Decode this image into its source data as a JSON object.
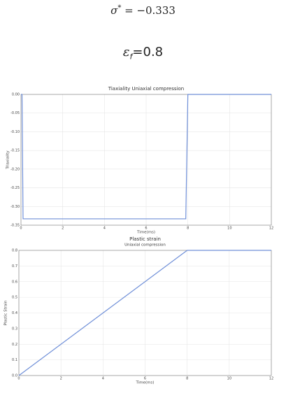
{
  "equations": [
    {
      "base": "σ",
      "sup": "*",
      "rest": " = −0.333"
    },
    {
      "base": "ε",
      "sub": "f",
      "rest": "=0.8"
    }
  ],
  "chart_data": [
    {
      "type": "line",
      "title": "Tiaxiality Uniaxial compression",
      "xlabel": "Time(ms)",
      "ylabel": "Triaxiality",
      "x": [
        0,
        0.05,
        0.1,
        7.9,
        8.0,
        12
      ],
      "values": [
        0,
        0,
        -0.333,
        -0.333,
        0,
        0
      ],
      "color": "#6f8fd8",
      "xlim": [
        0,
        12
      ],
      "xticks": [
        0,
        2,
        4,
        6,
        8,
        10,
        12
      ],
      "ylim": [
        -0.35,
        0
      ],
      "yticks": [
        {
          "value": 0,
          "label": "0.00"
        },
        {
          "value": -0.05,
          "label": "-0.05"
        },
        {
          "value": -0.1,
          "label": "-0.10"
        },
        {
          "value": -0.15,
          "label": "-0.15"
        },
        {
          "value": -0.2,
          "label": "-0.20"
        },
        {
          "value": -0.25,
          "label": "-0.25"
        },
        {
          "value": -0.3,
          "label": "-0.30"
        },
        {
          "value": -0.35,
          "label": "-0.35"
        }
      ],
      "grid": true
    },
    {
      "type": "line",
      "title": "Plastic strain",
      "subtitle": "Uniaxial compression",
      "xlabel": "Time(ms)",
      "ylabel": "Plastic Strain",
      "x": [
        0,
        8,
        12
      ],
      "values": [
        0,
        0.8,
        0.8
      ],
      "color": "#6f8fd8",
      "xlim": [
        0,
        12
      ],
      "xticks": [
        0,
        2,
        4,
        6,
        8,
        10,
        12
      ],
      "ylim": [
        0,
        0.8
      ],
      "yticks": [
        {
          "value": 0,
          "label": "0.0"
        },
        {
          "value": 0.1,
          "label": "0.1"
        },
        {
          "value": 0.2,
          "label": "0.2"
        },
        {
          "value": 0.3,
          "label": "0.3"
        },
        {
          "value": 0.4,
          "label": "0.4"
        },
        {
          "value": 0.5,
          "label": "0.5"
        },
        {
          "value": 0.6,
          "label": "0.6"
        },
        {
          "value": 0.7,
          "label": "0.7"
        },
        {
          "value": 0.8,
          "label": "0.8"
        }
      ],
      "grid": true
    }
  ]
}
